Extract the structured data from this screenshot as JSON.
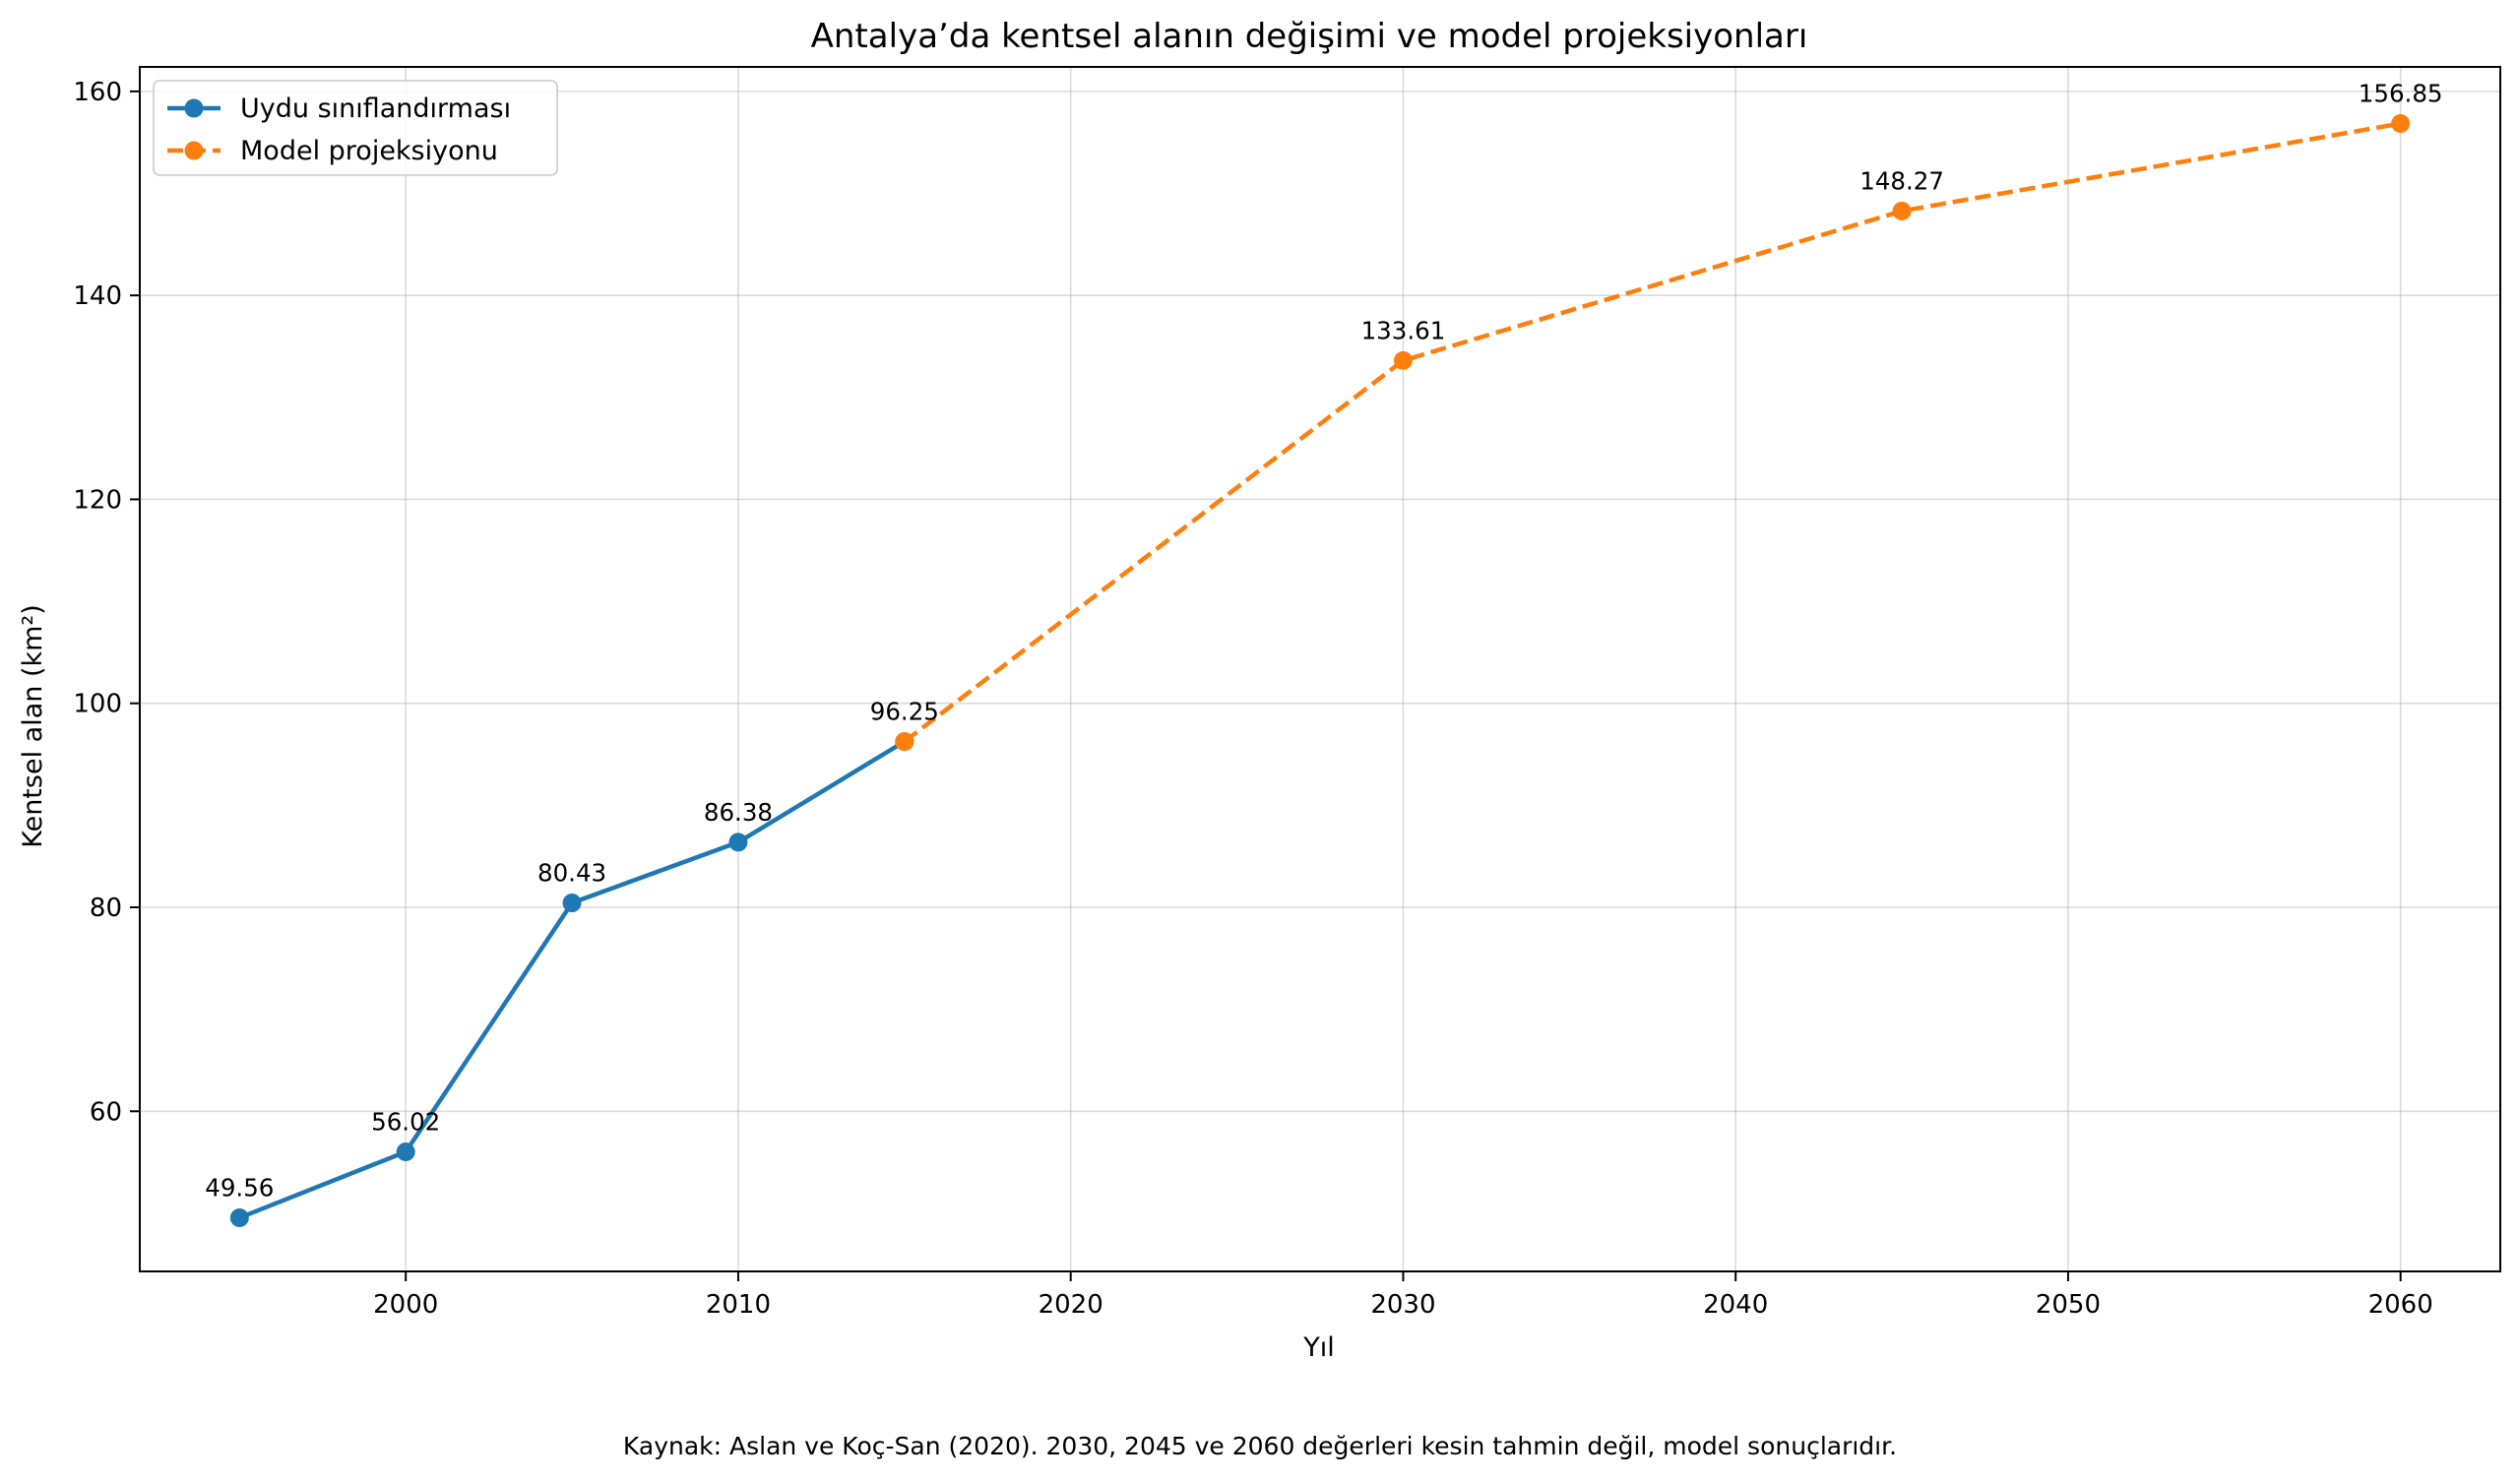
{
  "chart_data": {
    "type": "line",
    "title": "Antalya’da kentsel alanın değişimi ve model projeksiyonları",
    "xlabel": "Yıl",
    "ylabel": "Kentsel alan (km²)",
    "xlim": [
      1992,
      2063
    ],
    "ylim": [
      44.3,
      162.4
    ],
    "x_ticks": [
      2000,
      2010,
      2020,
      2030,
      2040,
      2050,
      2060
    ],
    "y_ticks": [
      60,
      80,
      100,
      120,
      140,
      160
    ],
    "grid": true,
    "legend_position": "top-left",
    "series": [
      {
        "name": "Uydu sınıflandırması",
        "color": "#1f77b4",
        "style": "solid",
        "x": [
          1995,
          2000,
          2005,
          2010,
          2015
        ],
        "y": [
          49.56,
          56.02,
          80.43,
          86.38,
          96.25
        ],
        "labels": [
          "49.56",
          "56.02",
          "80.43",
          "86.38",
          ""
        ]
      },
      {
        "name": "Model projeksiyonu",
        "color": "#ff7f0e",
        "style": "dashed",
        "x": [
          2015,
          2030,
          2045,
          2060
        ],
        "y": [
          96.25,
          133.61,
          148.27,
          156.85
        ],
        "labels": [
          "96.25",
          "133.61",
          "148.27",
          "156.85"
        ]
      }
    ],
    "caption": "Kaynak: Aslan ve Koç-San (2020). 2030, 2045 ve 2060 değerleri kesin tahmin değil, model sonuçlarıdır."
  }
}
